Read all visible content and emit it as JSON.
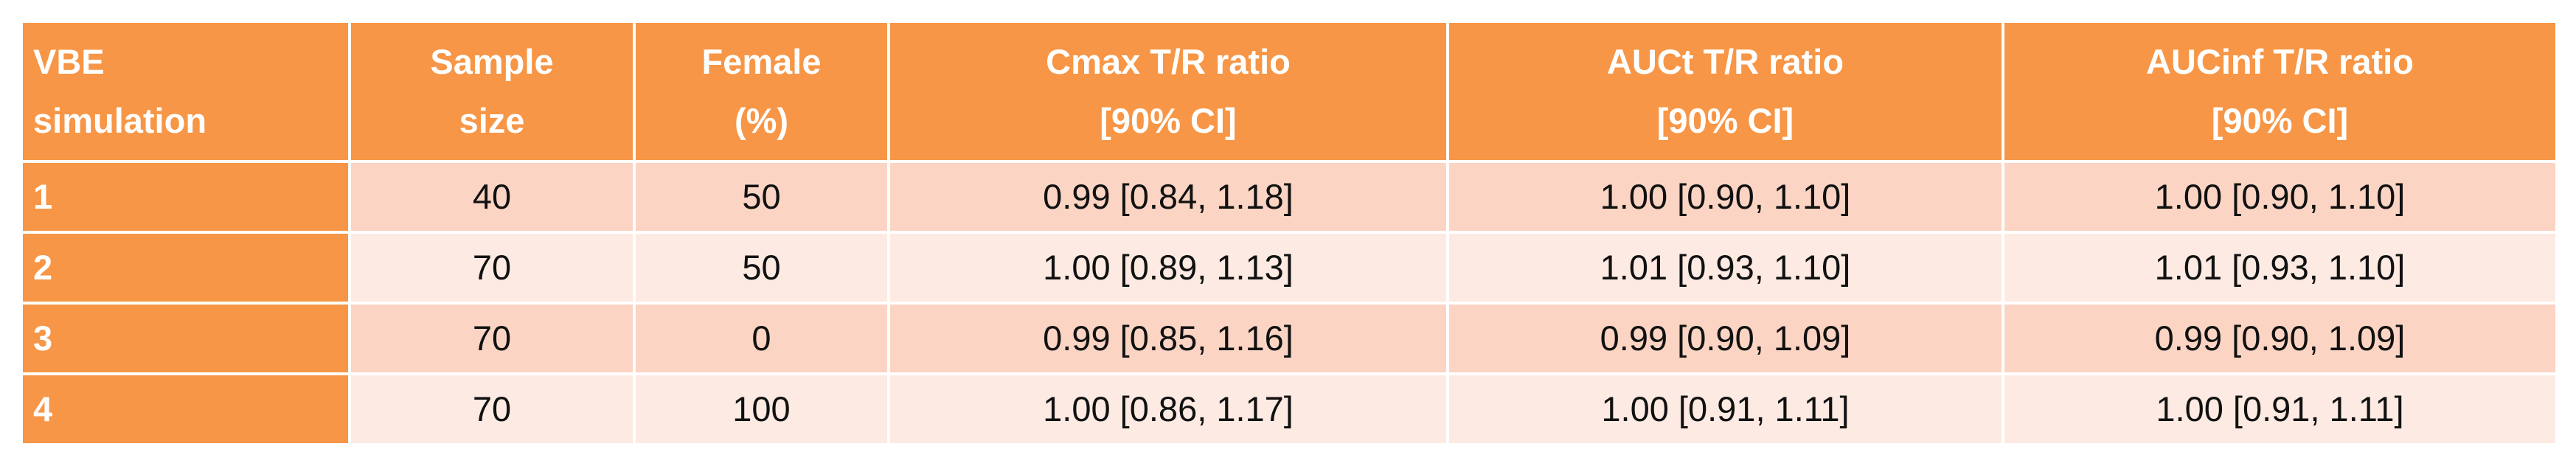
{
  "table": {
    "header": [
      [
        "VBE",
        "simulation"
      ],
      [
        "Sample",
        "size"
      ],
      [
        "Female",
        "(%)"
      ],
      [
        "Cmax T/R ratio",
        "[90% CI]"
      ],
      [
        "AUCt T/R ratio",
        "[90% CI]"
      ],
      [
        "AUCinf T/R ratio",
        "[90% CI]"
      ]
    ],
    "rows": [
      [
        "1",
        "40",
        "50",
        "0.99 [0.84, 1.18]",
        "1.00 [0.90, 1.10]",
        "1.00 [0.90, 1.10]"
      ],
      [
        "2",
        "70",
        "50",
        "1.00 [0.89, 1.13]",
        "1.01 [0.93, 1.10]",
        "1.01 [0.93, 1.10]"
      ],
      [
        "3",
        "70",
        "0",
        "0.99 [0.85, 1.16]",
        "0.99 [0.90, 1.09]",
        "0.99 [0.90, 1.09]"
      ],
      [
        "4",
        "70",
        "100",
        "1.00 [0.86, 1.17]",
        "1.00 [0.91, 1.11]",
        "1.00 [0.91, 1.11]"
      ]
    ]
  }
}
